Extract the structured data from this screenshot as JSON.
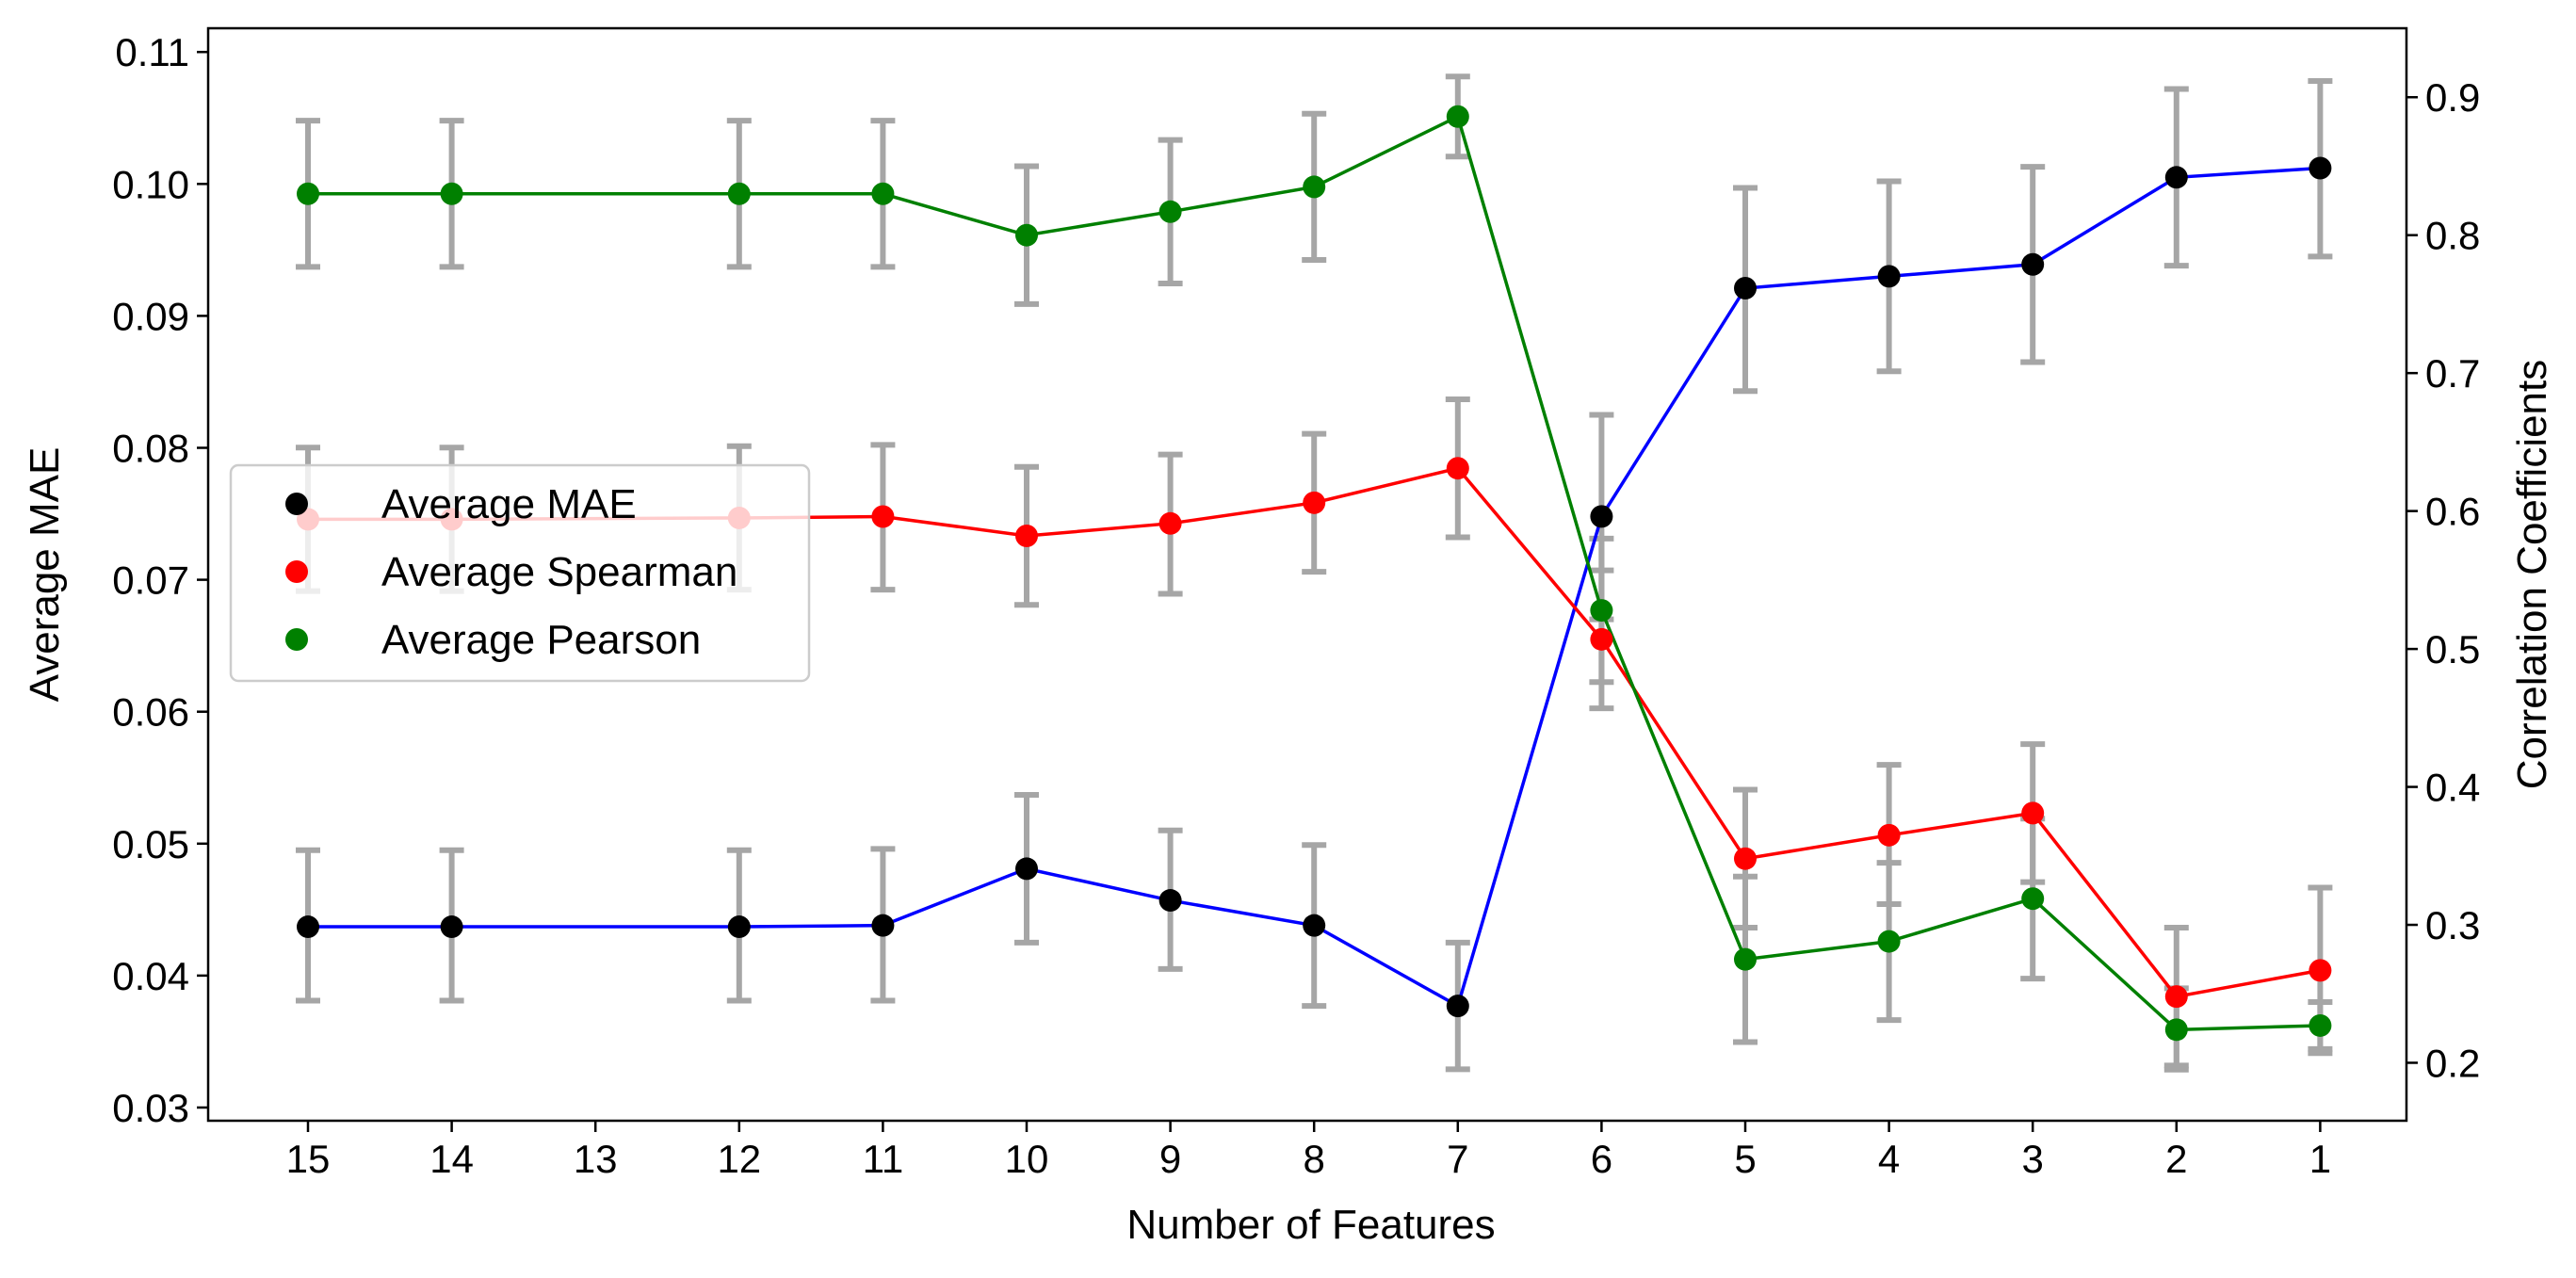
{
  "chart_data": {
    "type": "line",
    "xlabel": "Number of Features",
    "ylabel_left": "Average MAE",
    "ylabel_right": "Correlation Coefficients",
    "x_categories": [
      "15",
      "14",
      "13",
      "12",
      "11",
      "10",
      "9",
      "8",
      "7",
      "6",
      "5",
      "4",
      "3",
      "2",
      "1"
    ],
    "x": [
      15,
      14,
      12,
      11,
      10,
      9,
      8,
      7,
      6,
      5,
      4,
      3,
      2,
      1
    ],
    "ylim_left": [
      0.029,
      0.1118
    ],
    "ylim_right": [
      0.158,
      0.95
    ],
    "yticks_left": [
      "0.03",
      "0.04",
      "0.05",
      "0.06",
      "0.07",
      "0.08",
      "0.09",
      "0.10",
      "0.11"
    ],
    "yticks_right": [
      "0.2",
      "0.3",
      "0.4",
      "0.5",
      "0.6",
      "0.7",
      "0.8",
      "0.9"
    ],
    "legend_position": "center-left",
    "grid": false,
    "errorbar_color": "#a6a6a6",
    "series": [
      {
        "name": "Average MAE",
        "axis": "left",
        "line_color": "#0000ff",
        "marker_color": "#000000",
        "values": [
          0.0437,
          0.0437,
          0.0437,
          0.0438,
          0.0481,
          0.0457,
          0.0438,
          0.0377,
          0.0748,
          0.0921,
          0.093,
          0.0939,
          0.1005,
          0.1012
        ],
        "err_low": [
          0.0381,
          0.0381,
          0.0381,
          0.0381,
          0.0425,
          0.0405,
          0.0377,
          0.0329,
          0.067,
          0.0843,
          0.0858,
          0.0865,
          0.0938,
          0.0945
        ],
        "err_high": [
          0.0495,
          0.0495,
          0.0495,
          0.0496,
          0.0537,
          0.051,
          0.0499,
          0.0425,
          0.0825,
          0.0997,
          0.1002,
          0.1013,
          0.1072,
          0.1078
        ]
      },
      {
        "name": "Average Spearman",
        "axis": "right",
        "line_color": "#ff0000",
        "marker_color": "#ff0000",
        "values": [
          0.594,
          0.594,
          0.595,
          0.596,
          0.582,
          0.591,
          0.606,
          0.631,
          0.507,
          0.348,
          0.365,
          0.381,
          0.248,
          0.267
        ],
        "err_low": [
          0.542,
          0.542,
          0.543,
          0.543,
          0.532,
          0.54,
          0.556,
          0.581,
          0.457,
          0.298,
          0.315,
          0.331,
          0.198,
          0.207
        ],
        "err_high": [
          0.646,
          0.646,
          0.647,
          0.648,
          0.632,
          0.641,
          0.656,
          0.681,
          0.557,
          0.398,
          0.416,
          0.431,
          0.298,
          0.327
        ]
      },
      {
        "name": "Average Pearson",
        "axis": "right",
        "line_color": "#008000",
        "marker_color": "#008000",
        "values": [
          0.83,
          0.83,
          0.83,
          0.83,
          0.8,
          0.817,
          0.835,
          0.886,
          0.528,
          0.275,
          0.288,
          0.319,
          0.224,
          0.227
        ],
        "err_low": [
          0.777,
          0.777,
          0.777,
          0.777,
          0.75,
          0.765,
          0.782,
          0.857,
          0.476,
          0.215,
          0.231,
          0.261,
          0.195,
          0.21
        ],
        "err_high": [
          0.883,
          0.883,
          0.883,
          0.883,
          0.85,
          0.869,
          0.888,
          0.915,
          0.58,
          0.335,
          0.345,
          0.377,
          0.254,
          0.244
        ]
      }
    ]
  }
}
